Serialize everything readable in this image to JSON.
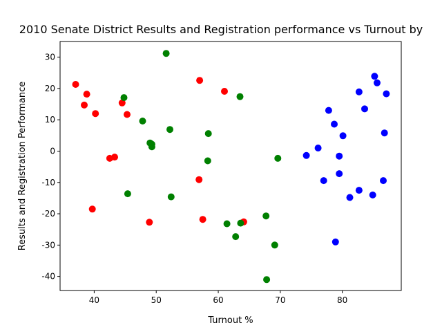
{
  "chart_data": {
    "type": "scatter",
    "title": "2010 Senate District Results and Registration performance vs Turnout by",
    "xlabel": "Turnout %",
    "ylabel": "Results and Registration Performance",
    "xlim": [
      34.5,
      89.5
    ],
    "ylim": [
      -44.5,
      35
    ],
    "x_ticks": [
      40,
      50,
      60,
      70,
      80
    ],
    "y_ticks": [
      -40,
      -30,
      -20,
      -10,
      0,
      10,
      20,
      30
    ],
    "grid": false,
    "legend": "none",
    "series": [
      {
        "color": "#ff0000",
        "points": [
          [
            37.0,
            21.3
          ],
          [
            38.4,
            14.7
          ],
          [
            38.8,
            18.2
          ],
          [
            40.2,
            12.0
          ],
          [
            39.7,
            -18.5
          ],
          [
            42.5,
            -2.3
          ],
          [
            43.3,
            -1.9
          ],
          [
            44.5,
            15.4
          ],
          [
            45.3,
            11.7
          ],
          [
            48.9,
            -22.7
          ],
          [
            56.9,
            -9.1
          ],
          [
            57.0,
            22.6
          ],
          [
            57.5,
            -21.8
          ],
          [
            61.0,
            19.1
          ],
          [
            64.1,
            -22.6
          ]
        ]
      },
      {
        "color": "#008000",
        "points": [
          [
            44.8,
            17.1
          ],
          [
            45.4,
            -13.6
          ],
          [
            47.8,
            9.6
          ],
          [
            49.0,
            2.6
          ],
          [
            49.3,
            2.2
          ],
          [
            49.3,
            1.4
          ],
          [
            51.6,
            31.2
          ],
          [
            52.2,
            6.9
          ],
          [
            52.4,
            -14.6
          ],
          [
            58.3,
            -3.1
          ],
          [
            58.4,
            5.6
          ],
          [
            61.4,
            -23.2
          ],
          [
            62.8,
            -27.3
          ],
          [
            63.5,
            17.4
          ],
          [
            63.6,
            -23.0
          ],
          [
            67.7,
            -20.7
          ],
          [
            67.8,
            -41.0
          ],
          [
            69.1,
            -30.0
          ],
          [
            69.6,
            -2.3
          ]
        ]
      },
      {
        "color": "#0000ff",
        "points": [
          [
            74.2,
            -1.4
          ],
          [
            76.1,
            1.0
          ],
          [
            77.0,
            -9.4
          ],
          [
            77.8,
            13.0
          ],
          [
            78.7,
            8.6
          ],
          [
            78.9,
            -29.0
          ],
          [
            79.5,
            -1.6
          ],
          [
            79.5,
            -7.2
          ],
          [
            80.1,
            4.9
          ],
          [
            81.2,
            -14.8
          ],
          [
            82.7,
            18.9
          ],
          [
            82.7,
            -12.5
          ],
          [
            83.6,
            13.5
          ],
          [
            84.9,
            -14.0
          ],
          [
            85.2,
            23.9
          ],
          [
            85.6,
            21.8
          ],
          [
            86.6,
            -9.4
          ],
          [
            86.8,
            5.8
          ],
          [
            87.1,
            18.3
          ]
        ]
      }
    ]
  }
}
